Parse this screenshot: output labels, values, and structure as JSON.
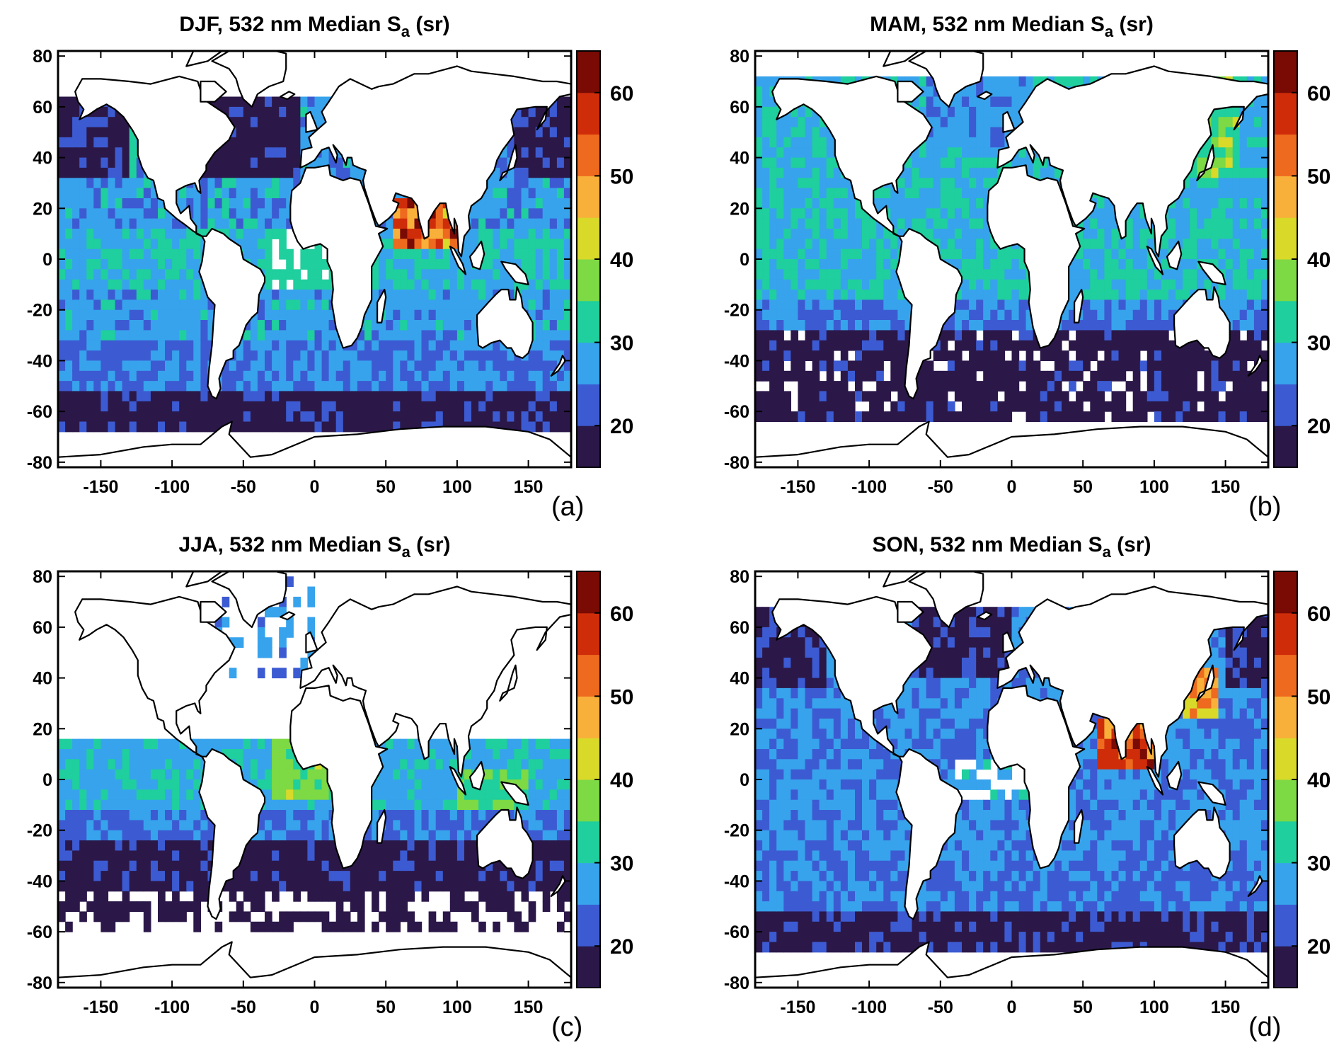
{
  "figure": {
    "panels": [
      {
        "id": "a",
        "title": "DJF, 532 nm Median S",
        "title_sub": "a",
        "title_tail": " (sr)",
        "label": "(a)",
        "season": "DJF"
      },
      {
        "id": "b",
        "title": "MAM, 532 nm Median S",
        "title_sub": "a",
        "title_tail": " (sr)",
        "label": "(b)",
        "season": "MAM"
      },
      {
        "id": "c",
        "title": "JJA, 532 nm Median S",
        "title_sub": "a",
        "title_tail": " (sr)",
        "label": "(c)",
        "season": "JJA"
      },
      {
        "id": "d",
        "title": "SON, 532 nm Median S",
        "title_sub": "a",
        "title_tail": " (sr)",
        "label": "(d)",
        "season": "SON"
      }
    ],
    "x_ticks": [
      "-150",
      "-100",
      "-50",
      "0",
      "50",
      "100",
      "150"
    ],
    "x_tick_values": [
      -150,
      -100,
      -50,
      0,
      50,
      100,
      150
    ],
    "y_ticks": [
      "80",
      "60",
      "40",
      "20",
      "0",
      "-20",
      "-40",
      "-60",
      "-80"
    ],
    "y_tick_values": [
      80,
      60,
      40,
      20,
      0,
      -20,
      -40,
      -60,
      -80
    ],
    "colorbar": {
      "range": [
        15,
        65
      ],
      "step": 5,
      "tick_values": [
        20,
        30,
        40,
        50,
        60
      ],
      "tick_labels": [
        "20",
        "30",
        "40",
        "50",
        "60"
      ],
      "colors": [
        "#2b1849",
        "#3c5bd2",
        "#37a3ec",
        "#1fcf9d",
        "#7dd944",
        "#d9d92a",
        "#f8b03a",
        "#ee6a1e",
        "#cf2d0a",
        "#7a0a04"
      ]
    }
  },
  "chart_data": {
    "type": "heatmap",
    "variable": "532 nm Median Sa",
    "units": "sr",
    "x_range": [
      -180,
      180
    ],
    "y_range": [
      -82,
      82
    ],
    "color_range": [
      15,
      65
    ],
    "seasons": {
      "DJF": {
        "dominant": "16-28 sr over most oceans",
        "dark_band_lat": [
          -65,
          -50
        ],
        "high_values": "Arabian Sea and Bay of Bengal 45-62 sr, N. Atlantic/N. Pacific 15-20 sr"
      },
      "MAM": {
        "dominant": "25-30 sr over tropics",
        "dark_band_lat": [
          -60,
          -25
        ],
        "high_values": "Mediterranean and E. Asia 35-45 sr"
      },
      "JJA": {
        "dominant": "20-30 sr tropics",
        "dark_band_lat": [
          -50,
          -25
        ],
        "high_values": "Tropical Atlantic off Africa 35-40 sr"
      },
      "SON": {
        "dominant": "20-28 sr",
        "dark_band_lat": [
          -65,
          -50
        ],
        "high_values": "Arabian Sea, Bay of Bengal and E. China 45-62 sr"
      }
    }
  }
}
